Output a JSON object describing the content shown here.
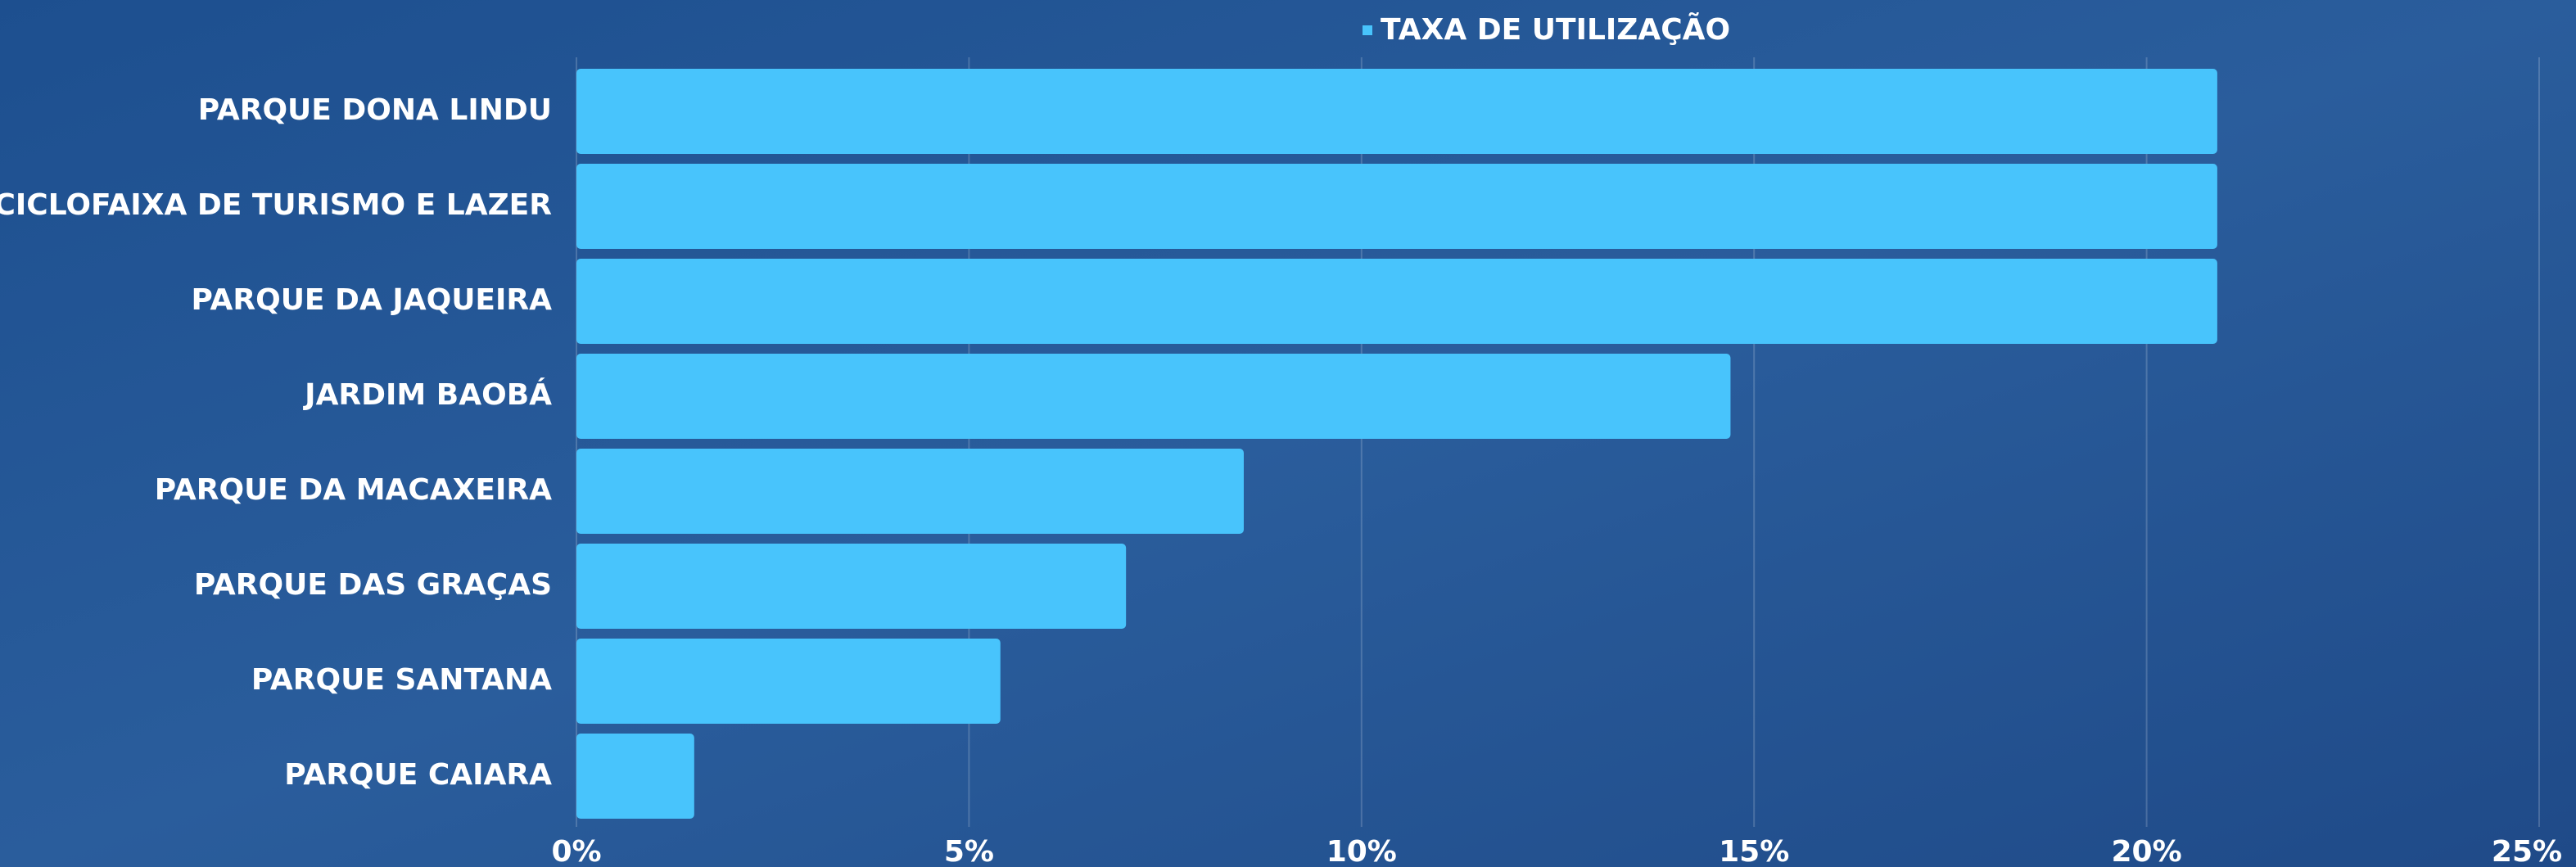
{
  "chart_data": {
    "type": "bar",
    "orientation": "horizontal",
    "categories": [
      "PARQUE DONA LINDU",
      "CICLOFAIXA DE TURISMO E LAZER",
      "PARQUE DA JAQUEIRA",
      "JARDIM BAOBÁ",
      "PARQUE DA MACAXEIRA",
      "PARQUE DAS GRAÇAS",
      "PARQUE SANTANA",
      "PARQUE CAIARA"
    ],
    "series": [
      {
        "name": "TAXA DE UTILIZAÇÃO",
        "color": "#48c4fc",
        "values": [
          20.9,
          20.9,
          20.9,
          14.7,
          8.5,
          7.0,
          5.4,
          1.5
        ]
      }
    ],
    "xlim": [
      0,
      25
    ],
    "xticks": [
      {
        "value": 0,
        "label": "0%"
      },
      {
        "value": 5,
        "label": "5%"
      },
      {
        "value": 10,
        "label": "10%"
      },
      {
        "value": 15,
        "label": "15%"
      },
      {
        "value": 20,
        "label": "20%"
      },
      {
        "value": 25,
        "label": "25%"
      }
    ],
    "grid": true,
    "legend": "top"
  }
}
